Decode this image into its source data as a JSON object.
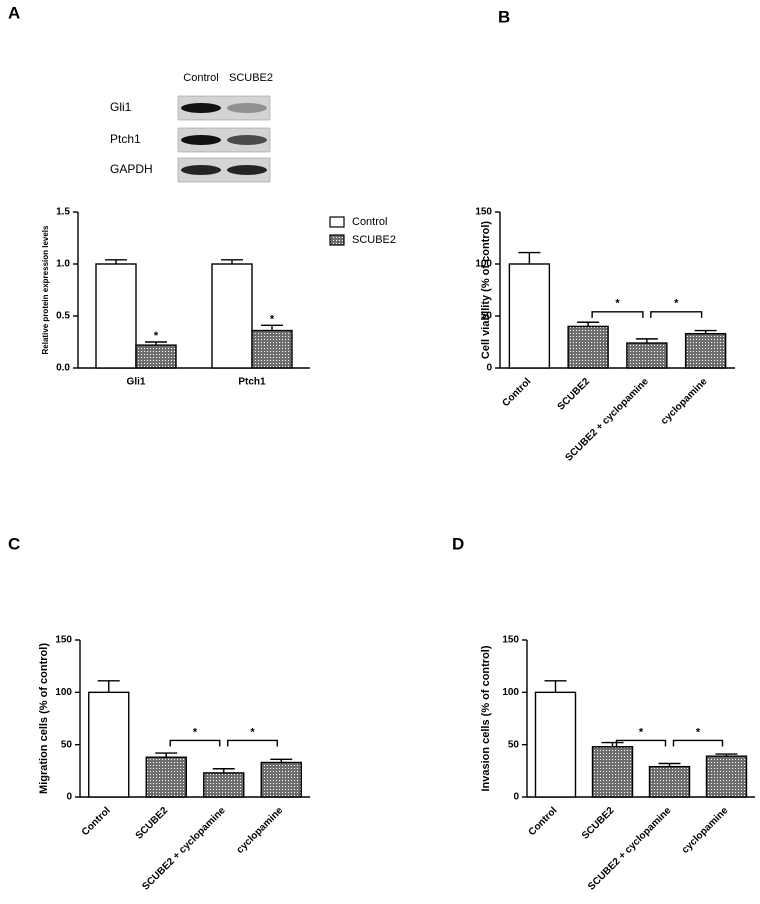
{
  "chart_data": [
    {
      "type": "bar",
      "label": "A",
      "ylabel": "Relative protein  expression levels",
      "blot": {
        "columns": [
          "Control",
          "SCUBE2"
        ],
        "rows": [
          "Gli1",
          "Ptch1",
          "GAPDH"
        ]
      },
      "categories": [
        "Gli1",
        "Ptch1"
      ],
      "series": [
        {
          "name": "Control",
          "color": "#ffffff",
          "values": [
            1.0,
            1.0
          ],
          "errors": [
            0.04,
            0.04
          ]
        },
        {
          "name": "SCUBE2",
          "color": "#6e6e6e",
          "values": [
            0.22,
            0.36
          ],
          "errors": [
            0.03,
            0.05
          ],
          "annotations": [
            "*",
            "*"
          ]
        }
      ],
      "ylim": [
        0,
        1.5
      ],
      "yticks": [
        {
          "value": 0,
          "label": "0.0"
        },
        {
          "value": 0.5,
          "label": "0.5"
        },
        {
          "value": 1,
          "label": "1.0"
        },
        {
          "value": 1.5,
          "label": "1.5"
        }
      ],
      "legend": "right"
    },
    {
      "type": "bar",
      "label": "B",
      "ylabel": "Cell viability (% of control)",
      "categories": [
        "Control",
        "SCUBE2",
        "SCUBE2 + cyclopamine",
        "cyclopamine"
      ],
      "values": [
        100,
        40,
        24,
        33
      ],
      "errors": [
        11,
        4,
        4,
        3
      ],
      "colors": [
        "#ffffff",
        "#6e6e6e",
        "#6e6e6e",
        "#6e6e6e"
      ],
      "brackets": [
        {
          "from": 1,
          "to": 2,
          "label": "*"
        },
        {
          "from": 2,
          "to": 3,
          "label": "*"
        }
      ],
      "ylim": [
        0,
        150
      ],
      "yticks": [
        0,
        50,
        100,
        150
      ]
    },
    {
      "type": "bar",
      "label": "C",
      "ylabel": "Migration cells (% of control)",
      "categories": [
        "Control",
        "SCUBE2",
        "SCUBE2 + cyclopamine",
        "cyclopamine"
      ],
      "values": [
        100,
        38,
        23,
        33
      ],
      "errors": [
        11,
        4,
        4,
        3
      ],
      "colors": [
        "#ffffff",
        "#6e6e6e",
        "#6e6e6e",
        "#6e6e6e"
      ],
      "brackets": [
        {
          "from": 1,
          "to": 2,
          "label": "*"
        },
        {
          "from": 2,
          "to": 3,
          "label": "*"
        }
      ],
      "ylim": [
        0,
        150
      ],
      "yticks": [
        0,
        50,
        100,
        150
      ]
    },
    {
      "type": "bar",
      "label": "D",
      "ylabel": "Invasion cells (% of control)",
      "categories": [
        "Control",
        "SCUBE2",
        "SCUBE2 + cyclopamine",
        "cyclopamine"
      ],
      "values": [
        100,
        48,
        29,
        39
      ],
      "errors": [
        11,
        4,
        3,
        2
      ],
      "colors": [
        "#ffffff",
        "#6e6e6e",
        "#6e6e6e",
        "#6e6e6e"
      ],
      "brackets": [
        {
          "from": 1,
          "to": 2,
          "label": "*"
        },
        {
          "from": 2,
          "to": 3,
          "label": "*"
        }
      ],
      "ylim": [
        0,
        150
      ],
      "yticks": [
        0,
        50,
        100,
        150
      ]
    }
  ]
}
